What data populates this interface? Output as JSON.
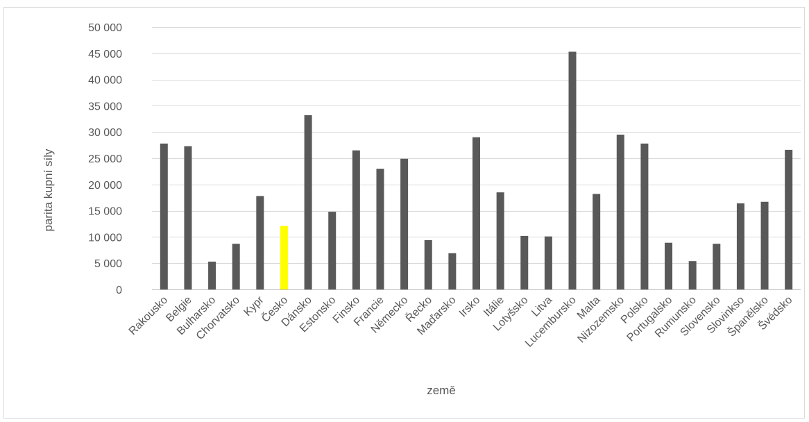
{
  "chart_data": {
    "type": "bar",
    "title": "",
    "xlabel": "země",
    "ylabel": "parita kupní síly",
    "ylim": [
      0,
      50000
    ],
    "ytick_step": 5000,
    "yticks": [
      "0",
      "5 000",
      "10 000",
      "15 000",
      "20 000",
      "25 000",
      "30 000",
      "35 000",
      "40 000",
      "45 000",
      "50 000"
    ],
    "grid": true,
    "legend": "none",
    "bar_color": "#595959",
    "highlight_color": "#ffff00",
    "highlight_category": "Česko",
    "categories": [
      "Rakousko",
      "Belgie",
      "Bulharsko",
      "Chorvatsko",
      "Kypr",
      "Česko",
      "Dánsko",
      "Estonsko",
      "Finsko",
      "Francie",
      "Německo",
      "Řecko",
      "Maďarsko",
      "Irsko",
      "Itálie",
      "Lotyšsko",
      "Litva",
      "Lucembursko",
      "Malta",
      "Nizozemsko",
      "Polsko",
      "Portugalsko",
      "Rumunsko",
      "Slovensko",
      "Slovinkso",
      "Španělsko",
      "Švédsko"
    ],
    "values": [
      27800,
      27300,
      5300,
      8700,
      17800,
      12100,
      33200,
      14800,
      26500,
      23000,
      24900,
      9400,
      6900,
      29000,
      18500,
      10200,
      10100,
      45300,
      18200,
      29500,
      27800,
      8900,
      5400,
      8700,
      16400,
      16700,
      26600
    ]
  }
}
